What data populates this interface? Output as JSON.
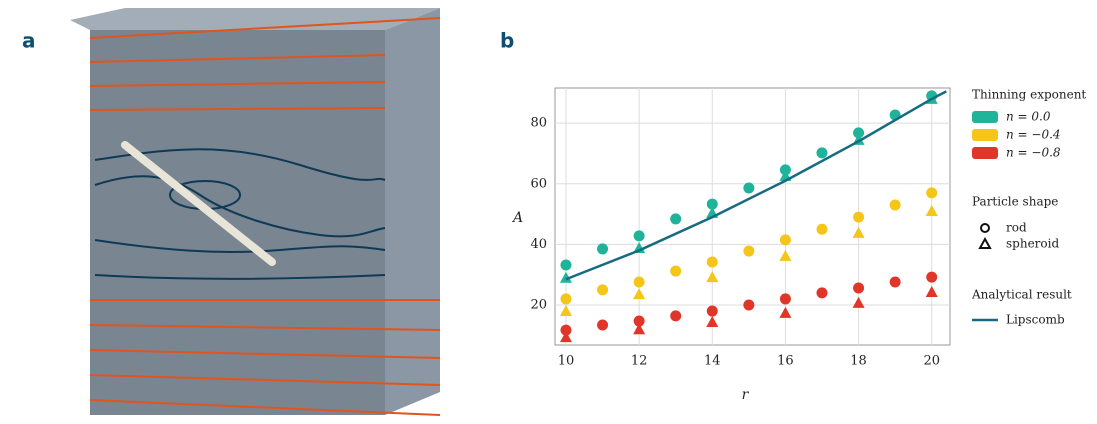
{
  "panels": [
    "a",
    "b"
  ],
  "chart_data": {
    "type": "scatter",
    "xlabel": "r",
    "ylabel": "A",
    "xlim": [
      9.7,
      20.5
    ],
    "ylim": [
      6.8,
      91.6
    ],
    "xticks": [
      10,
      12,
      14,
      16,
      18,
      20
    ],
    "yticks": [
      20,
      40,
      60,
      80
    ],
    "grid": true,
    "legend_titles": {
      "color": "Thinning exponent",
      "shape": "Particle shape",
      "line": "Analytical result"
    },
    "shapes": [
      "rod",
      "spheroid"
    ],
    "series": [
      {
        "name": "n =  0.0",
        "color": "#1fb39a",
        "rod": {
          "x": [
            10,
            11,
            12,
            13,
            14,
            15,
            16,
            17,
            18,
            19,
            20
          ],
          "values": [
            33.2,
            38.5,
            42.8,
            48.4,
            53.3,
            58.6,
            64.6,
            70.2,
            76.8,
            82.7,
            89
          ]
        },
        "spheroid": {
          "x": [
            10,
            12,
            14,
            16,
            18,
            20
          ],
          "values": [
            29,
            38.8,
            50.4,
            62.6,
            74.5,
            88
          ]
        }
      },
      {
        "name": "n = −0.4",
        "color": "#f5c518",
        "rod": {
          "x": [
            10,
            11,
            12,
            13,
            14,
            15,
            16,
            17,
            18,
            19,
            20
          ],
          "values": [
            22,
            25,
            27.6,
            31.2,
            34.2,
            37.8,
            41.5,
            45,
            49,
            53,
            57
          ]
        },
        "spheroid": {
          "x": [
            10,
            12,
            14,
            16,
            18,
            20
          ],
          "values": [
            18,
            23.6,
            29.2,
            36.2,
            43.8,
            51
          ]
        }
      },
      {
        "name": "n = −0.8",
        "color": "#e0362a",
        "rod": {
          "x": [
            10,
            11,
            12,
            13,
            14,
            15,
            16,
            17,
            18,
            19,
            20
          ],
          "values": [
            11.7,
            13.4,
            14.7,
            16.4,
            18,
            20,
            22,
            24,
            25.6,
            27.6,
            29.2
          ]
        },
        "spheroid": {
          "x": [
            10,
            12,
            14,
            16,
            18,
            20
          ],
          "values": [
            9.4,
            12,
            14.4,
            17.4,
            20.7,
            24.3
          ]
        }
      }
    ],
    "line": {
      "name": "Lipscomb",
      "color": "#176b80",
      "x": [
        10,
        12,
        14,
        16,
        18,
        20,
        20.4
      ],
      "values": [
        28.5,
        38,
        49,
        61,
        74,
        88,
        90.5
      ]
    }
  }
}
